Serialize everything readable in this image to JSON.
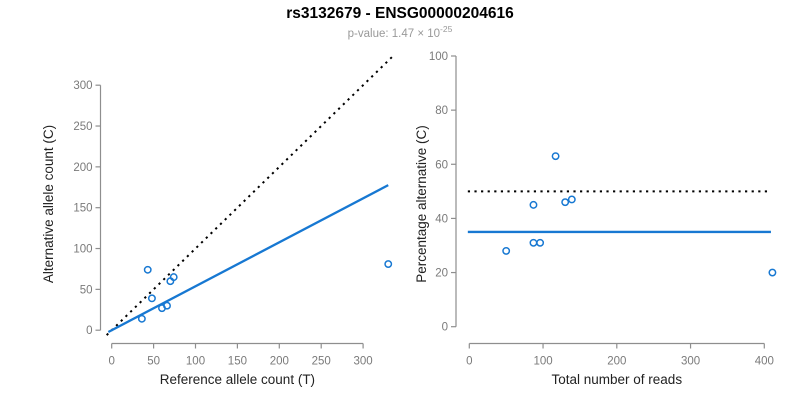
{
  "header": {
    "title": "rs3132679 - ENSG00000204616",
    "pvalue_text": "p-value: 1.47 × 10",
    "pvalue_exponent": "-25"
  },
  "colors": {
    "accent_blue": "#1778D2",
    "dotted_black": "#000000",
    "axis_gray": "#8E8E8E",
    "tick_label_gray": "#7A7A7A",
    "axis_title_color": "#222222",
    "subtitle_gray": "#999999"
  },
  "chart_data": [
    {
      "type": "scatter",
      "title": "",
      "xlabel": "Reference allele count (T)",
      "ylabel": "Alternative allele count (C)",
      "xticks": [
        0,
        50,
        100,
        150,
        200,
        250,
        300
      ],
      "yticks": [
        0,
        50,
        100,
        150,
        200,
        250,
        300
      ],
      "xlim": [
        -13,
        343
      ],
      "ylim": [
        -16,
        340
      ],
      "grid": false,
      "legend": null,
      "points": [
        [
          43,
          74
        ],
        [
          74,
          65
        ],
        [
          70,
          60
        ],
        [
          48,
          39
        ],
        [
          66,
          30
        ],
        [
          60,
          27
        ],
        [
          36,
          14
        ],
        [
          330,
          81
        ]
      ],
      "lines": [
        {
          "name": "identity-line",
          "style": "dotted",
          "color": "#000000",
          "from": [
            -6,
            -6
          ],
          "to": [
            338,
            338
          ]
        },
        {
          "name": "fit-line",
          "style": "solid",
          "color": "#1778D2",
          "from": [
            -4,
            -2.2
          ],
          "to": [
            330,
            177.6
          ]
        }
      ]
    },
    {
      "type": "scatter",
      "title": "",
      "xlabel": "Total number of reads",
      "ylabel": "Percentage alternative (C)",
      "xticks": [
        0,
        100,
        200,
        300,
        400
      ],
      "yticks": [
        0,
        20,
        40,
        60,
        80,
        100
      ],
      "xlim": [
        -17,
        429
      ],
      "ylim": [
        -6,
        106
      ],
      "grid": false,
      "legend": null,
      "points": [
        [
          117,
          63
        ],
        [
          139,
          47
        ],
        [
          130,
          46
        ],
        [
          87,
          45
        ],
        [
          96,
          31
        ],
        [
          87,
          31
        ],
        [
          50,
          28
        ],
        [
          411,
          20
        ]
      ],
      "lines": [
        {
          "name": "fifty-percent-line",
          "style": "dotted",
          "color": "#000000",
          "from": [
            -2,
            50
          ],
          "to": [
            409,
            50
          ]
        },
        {
          "name": "mean-percentage-line",
          "style": "solid",
          "color": "#1778D2",
          "from": [
            -2,
            35
          ],
          "to": [
            409,
            35
          ]
        }
      ]
    }
  ]
}
